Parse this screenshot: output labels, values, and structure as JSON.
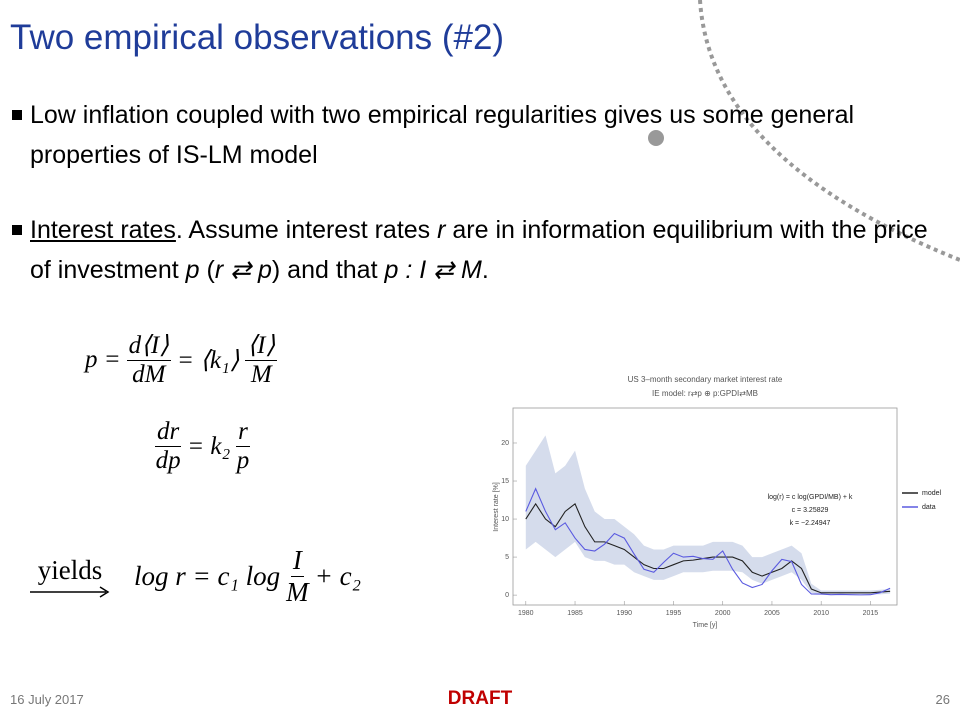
{
  "title": "Two empirical observations (#2)",
  "bullets": [
    [
      {
        "text": "Low inflation coupled with two empirical regularities gives us some general properties of IS-LM model"
      }
    ],
    [
      {
        "text": "Interest rates",
        "style": "u"
      },
      {
        "text": ". Assume interest rates "
      },
      {
        "text": "r",
        "style": "i"
      },
      {
        "text": " are in information equilibrium with the price of investment "
      },
      {
        "text": "p",
        "style": "i"
      },
      {
        "text": " ("
      },
      {
        "text": "r ⇄ p",
        "style": "i"
      },
      {
        "text": ") and that "
      },
      {
        "text": "p : I ⇄ M",
        "style": "i"
      },
      {
        "text": "."
      }
    ]
  ],
  "equations": {
    "eq1": {
      "lhs": "p =",
      "f1_num": "d⟨I⟩",
      "f1_den": "dM",
      "mid": "= ⟨k₁⟩",
      "f2_num": "⟨I⟩",
      "f2_den": "M"
    },
    "eq2": {
      "f1_num": "dr",
      "f1_den": "dp",
      "mid": "= k₂",
      "f2_num": "r",
      "f2_den": "p"
    },
    "eq3": {
      "arrow": "yields",
      "lhs": "log r = c₁ log",
      "f_num": "I",
      "f_den": "M",
      "rhs": "+ c₂"
    }
  },
  "chart_data": {
    "type": "line",
    "title": "US 3–month secondary market interest rate",
    "subtitle": "IE model: r⇄p ⊕ p:GPDI⇄MB",
    "annotations": [
      "log(r) = c log(GPDI/MB) + k",
      "c = 3.25829",
      "k = −2.24947"
    ],
    "x_label": "Time [y]",
    "y_label": "Interest rate [%]",
    "x": [
      1980,
      1981,
      1982,
      1983,
      1984,
      1985,
      1986,
      1987,
      1988,
      1989,
      1990,
      1991,
      1992,
      1993,
      1994,
      1995,
      1996,
      1997,
      1998,
      1999,
      2000,
      2001,
      2002,
      2003,
      2004,
      2005,
      2006,
      2007,
      2008,
      2009,
      2010,
      2011,
      2012,
      2013,
      2014,
      2015,
      2016,
      2017
    ],
    "band": {
      "color": "#d5dcec",
      "upper": [
        17,
        19,
        21,
        16,
        17,
        19,
        14,
        11,
        10,
        10,
        9,
        8,
        6.5,
        6,
        6,
        6.5,
        6.5,
        6.5,
        6.5,
        7,
        7,
        7,
        6.5,
        5,
        5,
        5.5,
        6,
        6.5,
        5.5,
        1.5,
        0.6,
        0.6,
        0.6,
        0.6,
        0.6,
        0.6,
        0.7,
        0.8
      ],
      "lower": [
        6,
        7,
        6,
        5,
        6,
        7,
        5,
        4.5,
        4.5,
        4,
        4,
        3,
        2.5,
        2,
        2,
        2.5,
        3,
        3,
        3,
        3.2,
        3.2,
        3.2,
        3,
        2,
        1.5,
        2,
        2.5,
        3,
        2,
        0.3,
        0.1,
        0.1,
        0.1,
        0.1,
        0.1,
        0.1,
        0.1,
        0.2
      ]
    },
    "series": [
      {
        "name": "model",
        "color": "#222222",
        "values": [
          10,
          12,
          10,
          9,
          11,
          12,
          9,
          7,
          7,
          6.5,
          6,
          5,
          4,
          3.5,
          3.5,
          4,
          4.5,
          4.6,
          4.8,
          5,
          5,
          5,
          4.5,
          3,
          2.5,
          3,
          3.5,
          4.5,
          3.5,
          0.8,
          0.3,
          0.3,
          0.3,
          0.3,
          0.3,
          0.3,
          0.4,
          0.5
        ]
      },
      {
        "name": "data",
        "color": "#5a5ae0",
        "values": [
          11,
          14,
          11,
          8.6,
          9.5,
          7.5,
          6,
          5.8,
          6.7,
          8.1,
          7.5,
          5.4,
          3.4,
          3,
          4.3,
          5.5,
          5,
          5.1,
          4.8,
          4.7,
          5.8,
          3.4,
          1.6,
          1,
          1.4,
          3.2,
          4.7,
          4.4,
          1.4,
          0.15,
          0.14,
          0.05,
          0.09,
          0.06,
          0.03,
          0.05,
          0.32,
          0.9
        ]
      }
    ],
    "xlim": [
      1978.7,
      2017.7
    ],
    "ylim": [
      -1.3,
      24.6
    ],
    "xticks": [
      1980,
      1985,
      1990,
      1995,
      2000,
      2005,
      2010,
      2015
    ],
    "yticks": [
      0,
      5,
      10,
      15,
      20
    ],
    "legend": "right"
  },
  "footer": {
    "date": "16 July 2017",
    "label": "DRAFT",
    "page": "26"
  }
}
